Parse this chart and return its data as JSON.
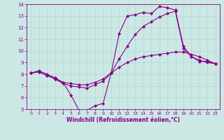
{
  "xlabel": "Windchill (Refroidissement éolien,°C)",
  "xlim": [
    -0.5,
    23.5
  ],
  "ylim": [
    5,
    14
  ],
  "xticks": [
    0,
    1,
    2,
    3,
    4,
    5,
    6,
    7,
    8,
    9,
    10,
    11,
    12,
    13,
    14,
    15,
    16,
    17,
    18,
    19,
    20,
    21,
    22,
    23
  ],
  "yticks": [
    5,
    6,
    7,
    8,
    9,
    10,
    11,
    12,
    13,
    14
  ],
  "background_color": "#cce8e4",
  "line_color": "#880088",
  "grid_color": "#b0d8d0",
  "lines": [
    {
      "x": [
        0,
        1,
        2,
        3,
        4,
        5,
        6,
        7,
        8,
        9,
        10,
        11,
        12,
        13,
        14,
        15,
        16,
        17,
        18,
        19,
        20,
        21,
        22,
        23
      ],
      "y": [
        8.1,
        8.3,
        8.0,
        7.7,
        7.3,
        6.2,
        4.9,
        4.9,
        5.3,
        5.5,
        8.1,
        11.5,
        13.0,
        13.1,
        13.3,
        13.2,
        13.8,
        13.7,
        13.5,
        10.4,
        9.5,
        9.2,
        9.0,
        8.9
      ]
    },
    {
      "x": [
        0,
        1,
        2,
        3,
        4,
        5,
        6,
        7,
        8,
        9,
        10,
        11,
        12,
        13,
        14,
        15,
        16,
        17,
        18,
        19,
        20,
        21,
        22,
        23
      ],
      "y": [
        8.1,
        8.2,
        7.9,
        7.6,
        7.3,
        7.2,
        7.1,
        7.1,
        7.3,
        7.6,
        8.1,
        8.6,
        9.0,
        9.3,
        9.5,
        9.6,
        9.7,
        9.8,
        9.9,
        9.9,
        9.7,
        9.5,
        9.2,
        8.9
      ]
    },
    {
      "x": [
        0,
        1,
        2,
        3,
        4,
        5,
        6,
        7,
        8,
        9,
        10,
        11,
        12,
        13,
        14,
        15,
        16,
        17,
        18,
        19,
        20,
        21,
        22,
        23
      ],
      "y": [
        8.1,
        8.2,
        7.9,
        7.6,
        7.2,
        7.0,
        6.9,
        6.8,
        7.1,
        7.4,
        8.1,
        9.3,
        10.4,
        11.4,
        12.1,
        12.5,
        12.9,
        13.2,
        13.4,
        10.2,
        9.5,
        9.1,
        9.1,
        8.9
      ]
    }
  ]
}
